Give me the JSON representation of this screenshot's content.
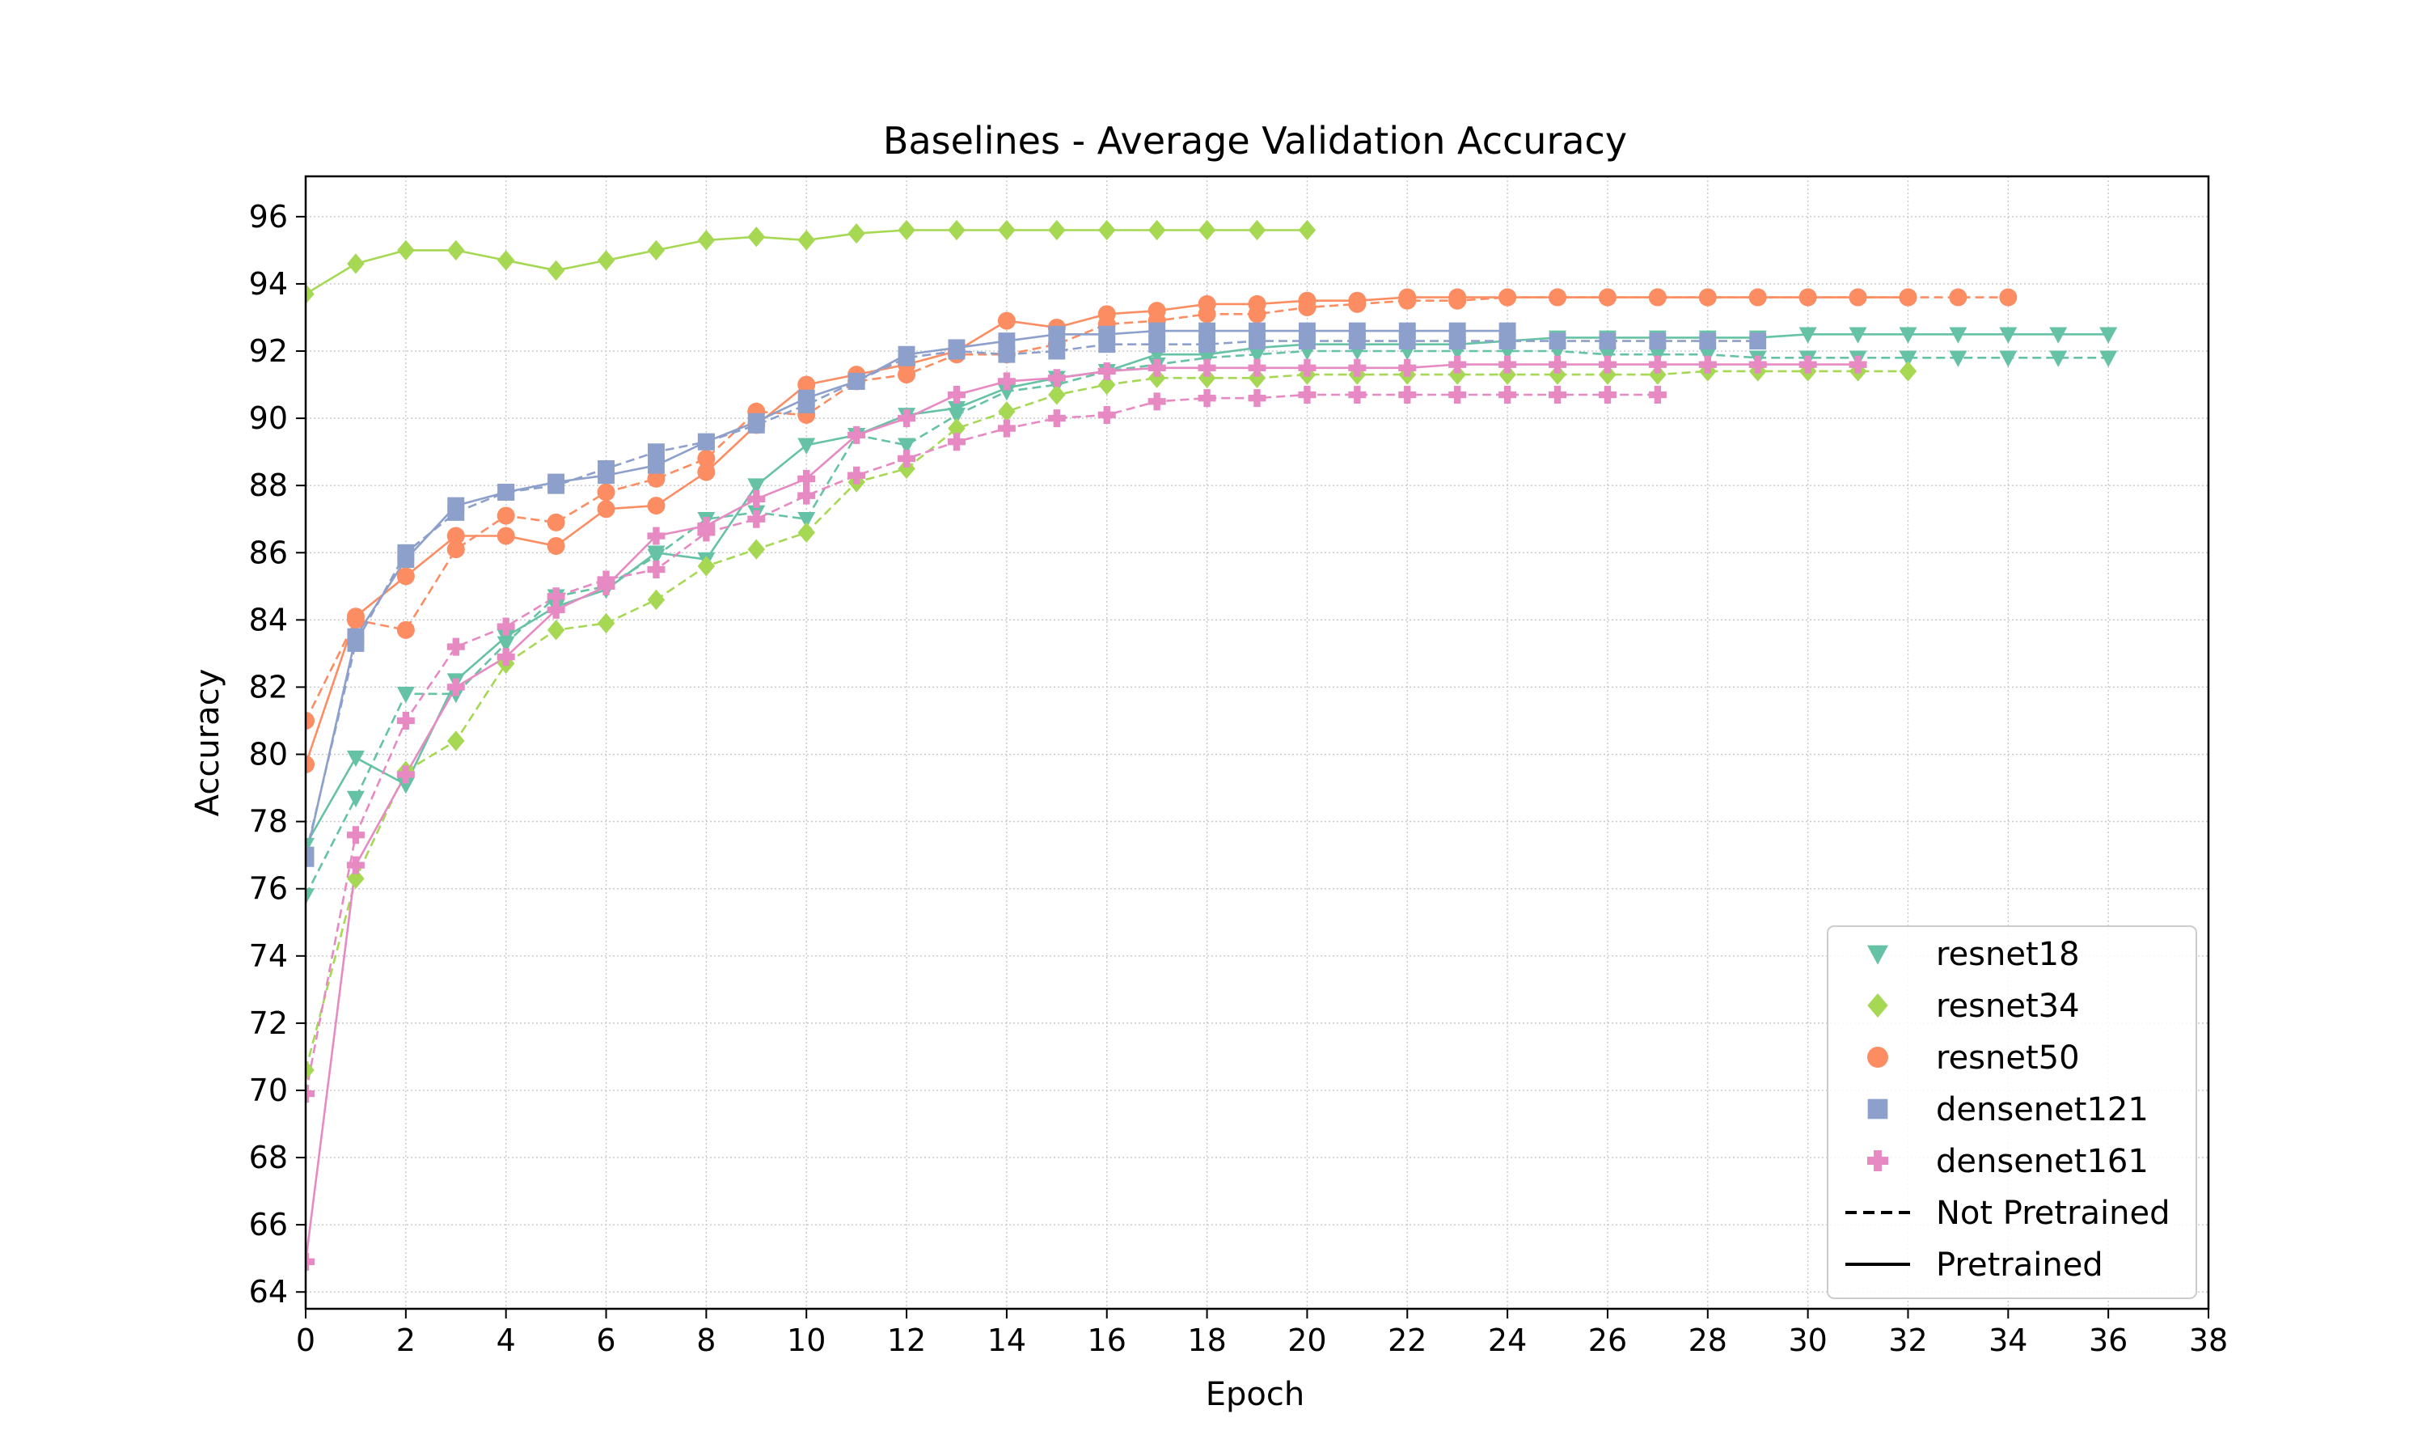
{
  "chart_data": {
    "type": "line",
    "title": "Baselines - Average Validation Accuracy",
    "xlabel": "Epoch",
    "ylabel": "Accuracy",
    "xlim": [
      0,
      38
    ],
    "ylim": [
      63.5,
      97.2
    ],
    "x_ticks": [
      0,
      2,
      4,
      6,
      8,
      10,
      12,
      14,
      16,
      18,
      20,
      22,
      24,
      26,
      28,
      30,
      32,
      34,
      36,
      38
    ],
    "y_ticks": [
      64,
      66,
      68,
      70,
      72,
      74,
      76,
      78,
      80,
      82,
      84,
      86,
      88,
      90,
      92,
      94,
      96
    ],
    "grid": true,
    "legend_position": "bottom-right",
    "legend": {
      "models": [
        {
          "label": "resnet18",
          "color": "#66c2a5",
          "marker": "triangle-down"
        },
        {
          "label": "resnet34",
          "color": "#a6d854",
          "marker": "diamond"
        },
        {
          "label": "resnet50",
          "color": "#fc8d62",
          "marker": "circle"
        },
        {
          "label": "densenet121",
          "color": "#8da0cb",
          "marker": "square"
        },
        {
          "label": "densenet161",
          "color": "#e78ac3",
          "marker": "plus"
        }
      ],
      "styles": [
        {
          "label": "Not Pretrained",
          "dash": "dashed"
        },
        {
          "label": "Pretrained",
          "dash": "solid"
        }
      ]
    },
    "series": [
      {
        "model": "resnet18",
        "pretrained": false,
        "color": "#66c2a5",
        "marker": "triangle-down",
        "dash": "dashed",
        "values": [
          75.8,
          78.7,
          81.8,
          81.8,
          83.3,
          84.7,
          85.0,
          85.9,
          87.0,
          87.2,
          87.0,
          89.5,
          89.2,
          90.1,
          90.8,
          91.0,
          91.4,
          91.6,
          91.8,
          91.9,
          92.0,
          92.0,
          92.0,
          92.0,
          92.0,
          92.0,
          91.9,
          91.9,
          91.9,
          91.8,
          91.8,
          91.8,
          91.8,
          91.8,
          91.8,
          91.8,
          91.8
        ]
      },
      {
        "model": "resnet18",
        "pretrained": true,
        "color": "#66c2a5",
        "marker": "triangle-down",
        "dash": "solid",
        "values": [
          77.3,
          79.9,
          79.1,
          82.2,
          83.5,
          84.4,
          84.9,
          86.0,
          85.8,
          88.0,
          89.2,
          89.5,
          90.1,
          90.3,
          90.9,
          91.2,
          91.4,
          91.9,
          91.9,
          92.1,
          92.2,
          92.2,
          92.2,
          92.2,
          92.3,
          92.4,
          92.4,
          92.4,
          92.4,
          92.4,
          92.5,
          92.5,
          92.5,
          92.5,
          92.5,
          92.5,
          92.5
        ]
      },
      {
        "model": "resnet34",
        "pretrained": false,
        "color": "#a6d854",
        "marker": "diamond",
        "dash": "dashed",
        "values": [
          70.6,
          76.3,
          79.5,
          80.4,
          82.7,
          83.7,
          83.9,
          84.6,
          85.6,
          86.1,
          86.6,
          88.1,
          88.5,
          89.7,
          90.2,
          90.7,
          91.0,
          91.2,
          91.2,
          91.2,
          91.3,
          91.3,
          91.3,
          91.3,
          91.3,
          91.3,
          91.3,
          91.3,
          91.4,
          91.4,
          91.4,
          91.4,
          91.4
        ]
      },
      {
        "model": "resnet34",
        "pretrained": true,
        "color": "#a6d854",
        "marker": "diamond",
        "dash": "solid",
        "values": [
          93.7,
          94.6,
          95.0,
          95.0,
          94.7,
          94.4,
          94.7,
          95.0,
          95.3,
          95.4,
          95.3,
          95.5,
          95.6,
          95.6,
          95.6,
          95.6,
          95.6,
          95.6,
          95.6,
          95.6,
          95.6
        ]
      },
      {
        "model": "resnet50",
        "pretrained": false,
        "color": "#fc8d62",
        "marker": "circle",
        "dash": "dashed",
        "values": [
          81.0,
          84.0,
          83.7,
          86.1,
          87.1,
          86.9,
          87.8,
          88.2,
          88.8,
          90.2,
          90.1,
          91.1,
          91.3,
          91.9,
          91.9,
          92.2,
          92.8,
          92.9,
          93.1,
          93.1,
          93.3,
          93.4,
          93.5,
          93.5,
          93.6,
          93.6,
          93.6,
          93.6,
          93.6,
          93.6,
          93.6,
          93.6,
          93.6,
          93.6,
          93.6
        ]
      },
      {
        "model": "resnet50",
        "pretrained": true,
        "color": "#fc8d62",
        "marker": "circle",
        "dash": "solid",
        "values": [
          79.7,
          84.1,
          85.3,
          86.5,
          86.5,
          86.2,
          87.3,
          87.4,
          88.4,
          89.8,
          91.0,
          91.3,
          91.6,
          92.0,
          92.9,
          92.7,
          93.1,
          93.2,
          93.4,
          93.4,
          93.5,
          93.5,
          93.6,
          93.6,
          93.6,
          93.6,
          93.6,
          93.6,
          93.6,
          93.6,
          93.6,
          93.6,
          93.6
        ]
      },
      {
        "model": "densenet121",
        "pretrained": false,
        "color": "#8da0cb",
        "marker": "square",
        "dash": "dashed",
        "values": [
          77.0,
          83.3,
          86.0,
          87.2,
          87.8,
          88.0,
          88.5,
          89.0,
          89.3,
          89.8,
          90.4,
          91.1,
          91.8,
          92.0,
          91.9,
          92.0,
          92.2,
          92.2,
          92.2,
          92.3,
          92.3,
          92.3,
          92.3,
          92.3,
          92.3,
          92.3,
          92.3,
          92.3,
          92.3,
          92.3
        ]
      },
      {
        "model": "densenet121",
        "pretrained": true,
        "color": "#8da0cb",
        "marker": "square",
        "dash": "solid",
        "values": [
          76.9,
          83.5,
          85.8,
          87.4,
          87.8,
          88.1,
          88.3,
          88.6,
          89.3,
          89.9,
          90.6,
          91.1,
          91.9,
          92.1,
          92.3,
          92.5,
          92.5,
          92.6,
          92.6,
          92.6,
          92.6,
          92.6,
          92.6,
          92.6,
          92.6
        ]
      },
      {
        "model": "densenet161",
        "pretrained": false,
        "color": "#e78ac3",
        "marker": "plus",
        "dash": "dashed",
        "values": [
          69.9,
          77.6,
          81.0,
          83.2,
          83.8,
          84.7,
          85.2,
          85.5,
          86.6,
          87.0,
          87.7,
          88.3,
          88.8,
          89.3,
          89.7,
          90.0,
          90.1,
          90.5,
          90.6,
          90.6,
          90.7,
          90.7,
          90.7,
          90.7,
          90.7,
          90.7,
          90.7,
          90.7
        ]
      },
      {
        "model": "densenet161",
        "pretrained": true,
        "color": "#e78ac3",
        "marker": "plus",
        "dash": "solid",
        "values": [
          64.9,
          76.7,
          79.4,
          82.0,
          82.9,
          84.3,
          85.0,
          86.5,
          86.8,
          87.6,
          88.2,
          89.5,
          90.0,
          90.7,
          91.1,
          91.2,
          91.4,
          91.5,
          91.5,
          91.5,
          91.5,
          91.5,
          91.5,
          91.6,
          91.6,
          91.6,
          91.6,
          91.6,
          91.6,
          91.6,
          91.6,
          91.6
        ]
      }
    ]
  }
}
